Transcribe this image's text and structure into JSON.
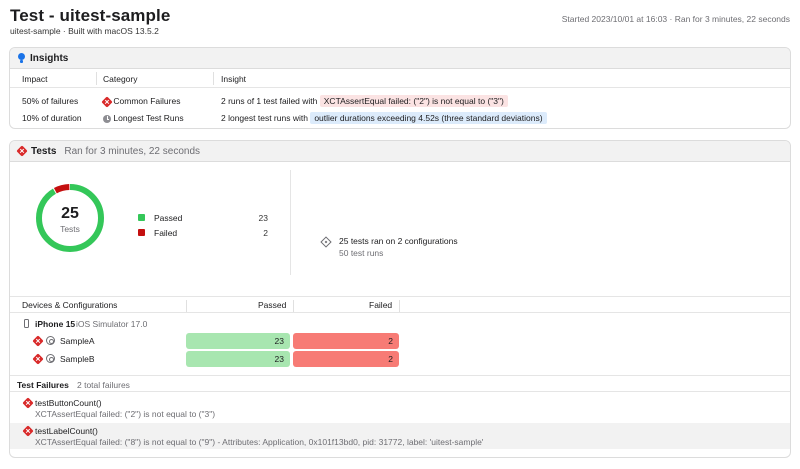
{
  "header": {
    "title": "Test - uitest-sample",
    "subtitle": "uitest-sample · Built with macOS 13.5.2",
    "started": "Started 2023/10/01 at 16:03 · Ran for 3 minutes, 22 seconds"
  },
  "insights": {
    "title": "Insights",
    "columns": {
      "impact": "Impact",
      "category": "Category",
      "insight": "Insight"
    },
    "rows": [
      {
        "impact": "50% of failures",
        "category": "Common Failures",
        "category_icon": "fail-icon",
        "text": "2 runs of 1 test failed with",
        "tag": "XCTAssertEqual failed: (\"2\") is not equal to (\"3\")",
        "tag_color": "#fbe3e3"
      },
      {
        "impact": "10% of duration",
        "category": "Longest Test Runs",
        "category_icon": "clock-icon",
        "text": "2 longest test runs with",
        "tag": "outlier durations exceeding 4.52s (three standard deviations)",
        "tag_color": "#dcebfb"
      }
    ]
  },
  "tests": {
    "title": "Tests",
    "subtitle": "Ran for 3 minutes, 22 seconds",
    "total": "25",
    "total_label": "Tests",
    "legend": [
      {
        "label": "Passed",
        "value": "23",
        "color": "#34c759"
      },
      {
        "label": "Failed",
        "value": "2",
        "color": "#c40f0f"
      }
    ],
    "runs_title": "25 tests ran on 2 configurations",
    "runs_sub": "50 test runs",
    "devices_header": {
      "name": "Devices & Configurations",
      "passed": "Passed",
      "failed": "Failed"
    },
    "device": {
      "name": "iPhone 15",
      "os": "iOS Simulator 17.0"
    },
    "configs": [
      {
        "name": "SampleA",
        "passed": "23",
        "failed": "2"
      },
      {
        "name": "SampleB",
        "passed": "23",
        "failed": "2"
      }
    ],
    "failures_title": "Test Failures",
    "failures_count": "2 total failures",
    "failures": [
      {
        "name": "testButtonCount()",
        "message": "XCTAssertEqual failed: (\"2\") is not equal to (\"3\")"
      },
      {
        "name": "testLabelCount()",
        "message": "XCTAssertEqual failed: (\"8\") is not equal to (\"9\") - Attributes: Application, 0x101f13bd0, pid: 31772, label: 'uitest-sample'"
      }
    ]
  }
}
